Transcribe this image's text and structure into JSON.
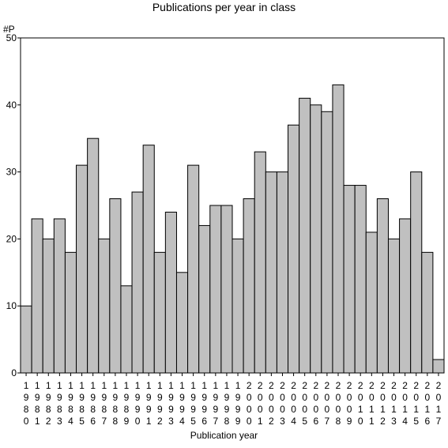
{
  "chart_data": {
    "type": "bar",
    "title": "Publications per year in class",
    "xlabel": "Publication year",
    "ylabel": "#P",
    "ylim": [
      0,
      50
    ],
    "yticks": [
      0,
      10,
      20,
      30,
      40,
      50
    ],
    "grid": false,
    "bar_color": "#c0c0c0",
    "categories": [
      "1980",
      "1981",
      "1982",
      "1983",
      "1984",
      "1985",
      "1986",
      "1987",
      "1988",
      "1989",
      "1990",
      "1991",
      "1992",
      "1993",
      "1994",
      "1995",
      "1996",
      "1997",
      "1998",
      "1999",
      "2000",
      "2001",
      "2002",
      "2003",
      "2004",
      "2005",
      "2006",
      "2007",
      "2008",
      "2009",
      "2010",
      "2011",
      "2012",
      "2013",
      "2014",
      "2015",
      "2016",
      "2017"
    ],
    "values": [
      10,
      23,
      20,
      23,
      18,
      31,
      35,
      20,
      26,
      13,
      27,
      34,
      18,
      24,
      15,
      31,
      22,
      25,
      25,
      20,
      26,
      33,
      30,
      30,
      37,
      41,
      40,
      39,
      43,
      28,
      28,
      21,
      26,
      20,
      23,
      30,
      18,
      2
    ]
  }
}
